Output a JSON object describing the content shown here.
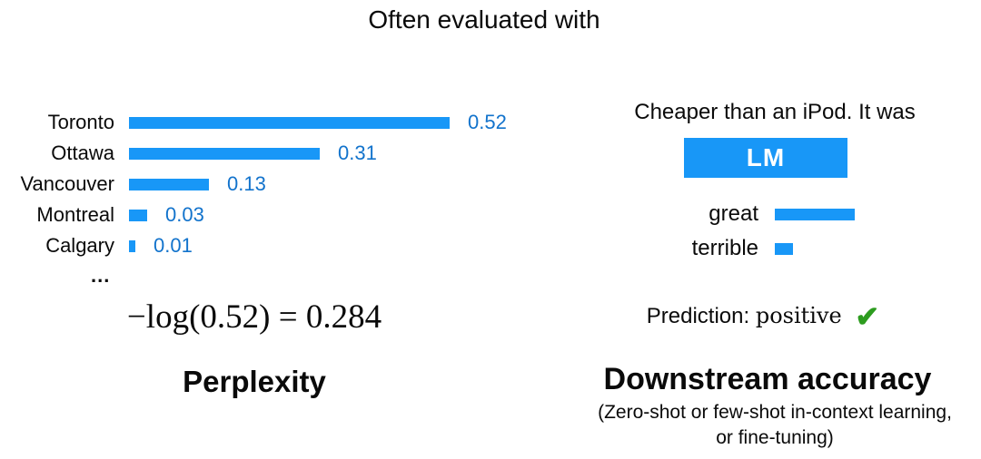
{
  "title": "Often evaluated with",
  "colors": {
    "bar_blue": "#1897f7",
    "value_label_blue": "#1273cc",
    "check_green": "#2d9c1f",
    "text": "#0a0a0a",
    "lm_box_text": "#ffffff"
  },
  "chart_data": [
    {
      "type": "bar",
      "orientation": "horizontal",
      "title": "Perplexity",
      "categories": [
        "Toronto",
        "Ottawa",
        "Vancouver",
        "Montreal",
        "Calgary"
      ],
      "values": [
        0.52,
        0.31,
        0.13,
        0.03,
        0.01
      ],
      "xlim": [
        0,
        0.52
      ],
      "grid": false,
      "value_labels_shown": true
    },
    {
      "type": "bar",
      "orientation": "horizontal",
      "title": "Downstream accuracy",
      "categories": [
        "great",
        "terrible"
      ],
      "values": [
        0.13,
        0.03
      ],
      "grid": false,
      "value_labels_shown": false
    }
  ],
  "left": {
    "ellipsis": "...",
    "formula": "−log(0.52) = 0.284",
    "caption": "Perplexity"
  },
  "right": {
    "prompt": "Cheaper than an iPod. It was",
    "lm_box_label": "LM",
    "prediction_label": "Prediction:",
    "prediction_value": "positive",
    "check_icon": "✔",
    "caption": "Downstream accuracy",
    "subcaption_line1": "(Zero-shot or few-shot in-context learning,",
    "subcaption_line2": "or fine-tuning)"
  }
}
